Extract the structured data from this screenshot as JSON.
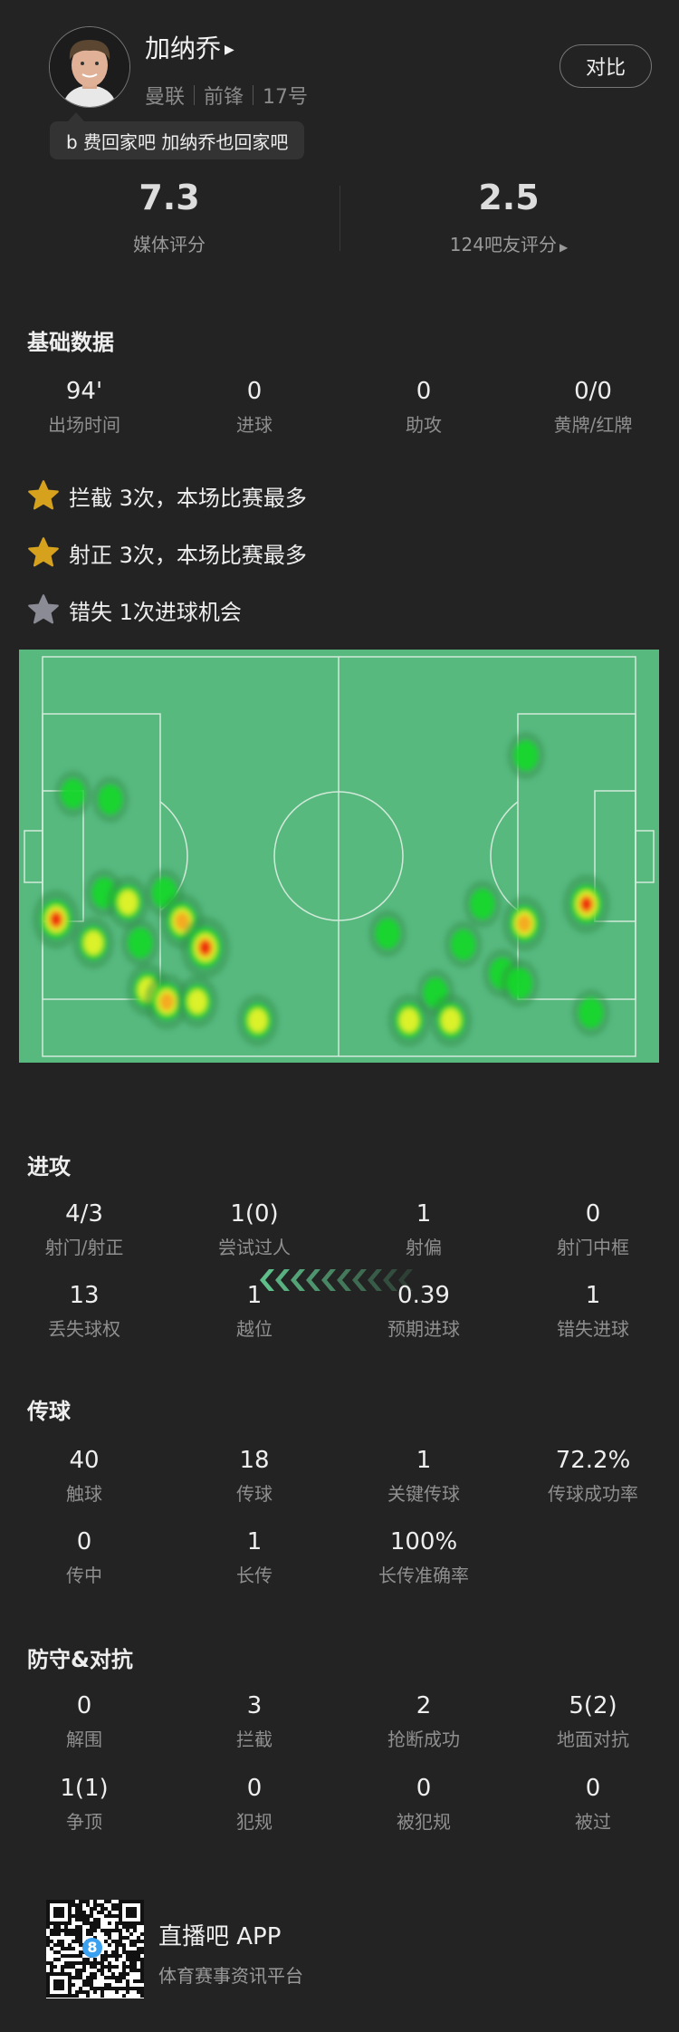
{
  "player": {
    "name": "加纳乔",
    "team": "曼联",
    "position": "前锋",
    "number": "17号",
    "compare_label": "对比",
    "comment": "b 费回家吧 加纳乔也回家吧"
  },
  "ratings": {
    "media": {
      "value": "7.3",
      "label": "媒体评分"
    },
    "fans": {
      "value": "2.5",
      "label": "124吧友评分"
    }
  },
  "basic": {
    "title": "基础数据",
    "stats": [
      {
        "value": "94'",
        "label": "出场时间"
      },
      {
        "value": "0",
        "label": "进球"
      },
      {
        "value": "0",
        "label": "助攻"
      },
      {
        "value": "0/0",
        "label": "黄牌/红牌"
      }
    ],
    "highlights": [
      {
        "text": "拦截 3次，本场比赛最多",
        "star": "gold"
      },
      {
        "text": "射正 3次，本场比赛最多",
        "star": "gold"
      },
      {
        "text": "错失 1次进球机会",
        "star": "gray"
      }
    ]
  },
  "colors": {
    "gold_star": "#d6a21e",
    "gray_star": "#8a8b95",
    "pitch": "#58b97f",
    "background": "#232323"
  },
  "heatmap": {
    "pitch_size_m": [
      105,
      68
    ],
    "points": [
      {
        "x": 5.4,
        "y": 23.3,
        "i": 0.2
      },
      {
        "x": 12.0,
        "y": 24.3,
        "i": 0.2
      },
      {
        "x": 2.4,
        "y": 44.7,
        "i": 0.85
      },
      {
        "x": 9.0,
        "y": 48.7,
        "i": 0.5
      },
      {
        "x": 10.9,
        "y": 40.2,
        "i": 0.25
      },
      {
        "x": 15.1,
        "y": 41.8,
        "i": 0.55
      },
      {
        "x": 17.3,
        "y": 48.7,
        "i": 0.25
      },
      {
        "x": 21.6,
        "y": 40.2,
        "i": 0.3
      },
      {
        "x": 24.7,
        "y": 45.0,
        "i": 0.7
      },
      {
        "x": 28.8,
        "y": 49.5,
        "i": 1.0
      },
      {
        "x": 18.6,
        "y": 56.7,
        "i": 0.55
      },
      {
        "x": 22.0,
        "y": 58.7,
        "i": 0.7
      },
      {
        "x": 27.4,
        "y": 58.7,
        "i": 0.5
      },
      {
        "x": 38.1,
        "y": 61.9,
        "i": 0.5
      },
      {
        "x": 61.1,
        "y": 47.1,
        "i": 0.25
      },
      {
        "x": 69.6,
        "y": 57.2,
        "i": 0.25
      },
      {
        "x": 64.9,
        "y": 61.9,
        "i": 0.55
      },
      {
        "x": 72.3,
        "y": 61.9,
        "i": 0.55
      },
      {
        "x": 74.5,
        "y": 49.0,
        "i": 0.25
      },
      {
        "x": 77.9,
        "y": 42.1,
        "i": 0.25
      },
      {
        "x": 85.3,
        "y": 45.4,
        "i": 0.65
      },
      {
        "x": 81.4,
        "y": 53.9,
        "i": 0.35
      },
      {
        "x": 84.5,
        "y": 55.6,
        "i": 0.3
      },
      {
        "x": 85.6,
        "y": 16.8,
        "i": 0.25
      },
      {
        "x": 96.3,
        "y": 42.1,
        "i": 0.85
      },
      {
        "x": 97.1,
        "y": 60.6,
        "i": 0.25
      }
    ]
  },
  "attack": {
    "title": "进攻",
    "rows": [
      [
        {
          "value": "4/3",
          "label": "射门/射正"
        },
        {
          "value": "1(0)",
          "label": "尝试过人"
        },
        {
          "value": "1",
          "label": "射偏"
        },
        {
          "value": "0",
          "label": "射门中框"
        }
      ],
      [
        {
          "value": "13",
          "label": "丢失球权"
        },
        {
          "value": "1",
          "label": "越位"
        },
        {
          "value": "0.39",
          "label": "预期进球"
        },
        {
          "value": "1",
          "label": "错失进球"
        }
      ]
    ]
  },
  "passing": {
    "title": "传球",
    "rows": [
      [
        {
          "value": "40",
          "label": "触球"
        },
        {
          "value": "18",
          "label": "传球"
        },
        {
          "value": "1",
          "label": "关键传球"
        },
        {
          "value": "72.2%",
          "label": "传球成功率"
        }
      ],
      [
        {
          "value": "0",
          "label": "传中"
        },
        {
          "value": "1",
          "label": "长传"
        },
        {
          "value": "100%",
          "label": "长传准确率"
        }
      ]
    ]
  },
  "defense": {
    "title": "防守&对抗",
    "rows": [
      [
        {
          "value": "0",
          "label": "解围"
        },
        {
          "value": "3",
          "label": "拦截"
        },
        {
          "value": "2",
          "label": "抢断成功"
        },
        {
          "value": "5(2)",
          "label": "地面对抗"
        }
      ],
      [
        {
          "value": "1(1)",
          "label": "争顶"
        },
        {
          "value": "0",
          "label": "犯规"
        },
        {
          "value": "0",
          "label": "被犯规"
        },
        {
          "value": "0",
          "label": "被过"
        }
      ]
    ]
  },
  "footer": {
    "app_name": "直播吧 APP",
    "tagline": "体育赛事资讯平台",
    "qr_logo": "8"
  }
}
